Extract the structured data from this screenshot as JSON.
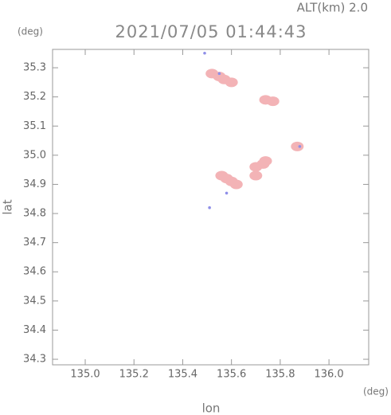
{
  "chart_data": {
    "type": "scatter",
    "title": "2021/07/05 01:44:43",
    "subtitle": "ALT(km) 2.0",
    "x_label": "lon",
    "y_label": "lat",
    "x_unit": "(deg)",
    "y_unit": "(deg)",
    "xlim": [
      134.866,
      136.163
    ],
    "ylim": [
      34.281,
      35.363
    ],
    "xticks": [
      {
        "value": 135.0,
        "label": "135.0"
      },
      135.2,
      135.4,
      135.6,
      135.8,
      {
        "value": 136.0,
        "label": "136.0"
      }
    ],
    "yticks": [
      35.3,
      35.2,
      35.1,
      {
        "value": 35.0,
        "label": "35.0"
      },
      34.9,
      34.8,
      34.7,
      34.6,
      34.5,
      34.4,
      34.3
    ],
    "series": [
      {
        "color": "#f3b3b6",
        "x": [
          135.52,
          135.55,
          135.57,
          135.6,
          135.74,
          135.77,
          135.87,
          135.56,
          135.58,
          135.6,
          135.62,
          135.7,
          135.73,
          135.74,
          135.7
        ],
        "values": [
          35.28,
          35.27,
          35.26,
          35.25,
          35.19,
          35.185,
          35.03,
          34.93,
          34.92,
          34.91,
          34.9,
          34.96,
          34.97,
          34.98,
          34.93
        ]
      },
      {
        "color": "#8f8fe8",
        "x": [
          135.49,
          135.55,
          135.58,
          135.51,
          135.88
        ],
        "values": [
          35.35,
          35.28,
          34.87,
          34.82,
          35.03
        ]
      }
    ]
  }
}
